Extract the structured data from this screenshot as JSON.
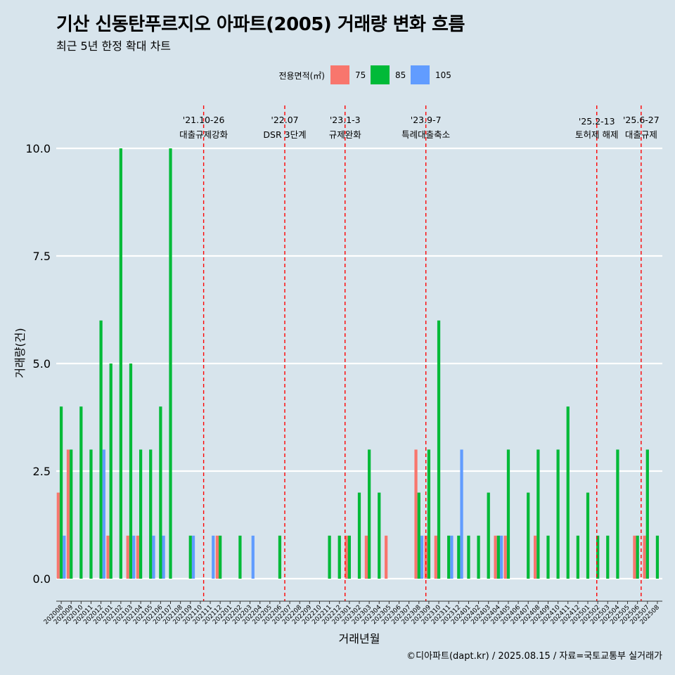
{
  "title": "기산 신동탄푸르지오 아파트(2005) 거래량 변화 흐름",
  "subtitle": "최근 5년 한정 확대 차트",
  "caption": "©디아파트(dapt.kr) / 2025.08.15 / 자료=국토교통부 실거래가",
  "colors": {
    "75": "#f8766d",
    "85": "#00ba38",
    "105": "#619cff",
    "event_line": "#ff0000"
  },
  "chart_data": {
    "type": "bar",
    "xlabel": "거래년월",
    "ylabel": "거래량(건)",
    "ylim": [
      0,
      10
    ],
    "yticks": [
      "0.0",
      "2.5",
      "5.0",
      "7.5",
      "10.0"
    ],
    "legend": {
      "title": "전용면적(㎡)",
      "position": "top",
      "entries": [
        "75",
        "85",
        "105"
      ]
    },
    "grid": true,
    "categories": [
      "202008",
      "202009",
      "202010",
      "202011",
      "202012",
      "202101",
      "202102",
      "202103",
      "202104",
      "202105",
      "202106",
      "202107",
      "202108",
      "202109",
      "202110",
      "202111",
      "202112",
      "202201",
      "202202",
      "202203",
      "202204",
      "202205",
      "202206",
      "202207",
      "202208",
      "202209",
      "202210",
      "202211",
      "202212",
      "202301",
      "202302",
      "202303",
      "202304",
      "202305",
      "202306",
      "202307",
      "202308",
      "202309",
      "202310",
      "202311",
      "202312",
      "202401",
      "202402",
      "202403",
      "202404",
      "202405",
      "202406",
      "202407",
      "202408",
      "202409",
      "202410",
      "202411",
      "202412",
      "202501",
      "202502",
      "202503",
      "202504",
      "202505",
      "202506",
      "202507",
      "202508"
    ],
    "series": [
      {
        "name": "75",
        "values": [
          2,
          3,
          0,
          0,
          0,
          1,
          0,
          1,
          1,
          0,
          0,
          0,
          0,
          0,
          0,
          0,
          1,
          0,
          0,
          0,
          0,
          0,
          0,
          0,
          0,
          0,
          0,
          0,
          0,
          1,
          0,
          1,
          0,
          1,
          0,
          0,
          3,
          1,
          1,
          0,
          0,
          0,
          0,
          0,
          1,
          1,
          0,
          0,
          1,
          0,
          0,
          0,
          0,
          0,
          0,
          0,
          0,
          0,
          1,
          1,
          0
        ]
      },
      {
        "name": "85",
        "values": [
          4,
          3,
          4,
          3,
          6,
          5,
          10,
          5,
          3,
          3,
          4,
          10,
          0,
          1,
          0,
          0,
          1,
          0,
          1,
          0,
          0,
          0,
          1,
          0,
          0,
          0,
          0,
          1,
          1,
          1,
          2,
          3,
          2,
          0,
          0,
          0,
          2,
          3,
          6,
          1,
          1,
          1,
          1,
          2,
          1,
          3,
          0,
          2,
          3,
          1,
          3,
          4,
          1,
          2,
          1,
          1,
          3,
          0,
          1,
          3,
          1
        ]
      },
      {
        "name": "105",
        "values": [
          1,
          0,
          0,
          0,
          3,
          0,
          0,
          1,
          0,
          1,
          1,
          0,
          0,
          1,
          0,
          1,
          0,
          0,
          0,
          1,
          0,
          0,
          0,
          0,
          0,
          0,
          0,
          0,
          0,
          0,
          0,
          0,
          0,
          0,
          0,
          0,
          1,
          0,
          0,
          1,
          3,
          0,
          0,
          0,
          1,
          0,
          0,
          0,
          0,
          0,
          0,
          0,
          0,
          0,
          0,
          0,
          0,
          0,
          0,
          0,
          0
        ]
      }
    ],
    "events": [
      {
        "date": "'21.10-26",
        "label": "대출규제강화",
        "month": "202110",
        "day": 26
      },
      {
        "date": "'22.07",
        "label": "DSR 3단계",
        "month": "202207",
        "day": 1
      },
      {
        "date": "'23.1-3",
        "label": "규제완화",
        "month": "202301",
        "day": 3
      },
      {
        "date": "'23.9-7",
        "label": "특례대출축소",
        "month": "202309",
        "day": 7
      },
      {
        "date": "'25.2-13",
        "label": "토허제 해제",
        "month": "202502",
        "day": 13
      },
      {
        "date": "'25.6-27",
        "label": "대출규제",
        "month": "202506",
        "day": 27
      }
    ]
  }
}
